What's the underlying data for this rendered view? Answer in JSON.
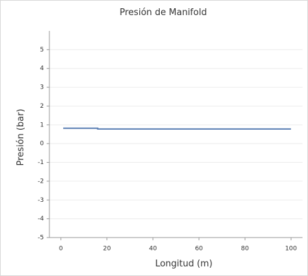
{
  "chart_data": {
    "type": "line",
    "title": "Presión de Manifold",
    "xlabel": "Longitud (m)",
    "ylabel": "Presión (bar)",
    "x": [
      1,
      16,
      16,
      100
    ],
    "series": [
      {
        "color": "#5b7fb4",
        "values": [
          0.82,
          0.82,
          0.78,
          0.78
        ]
      }
    ],
    "xlim": [
      -5,
      105
    ],
    "xticks": [
      0,
      20,
      40,
      60,
      80,
      100
    ],
    "ylim": [
      -5,
      6
    ],
    "yticks": [
      -5,
      -4,
      -3,
      -2,
      -1,
      0,
      1,
      2,
      3,
      4,
      5
    ],
    "grid": true
  }
}
